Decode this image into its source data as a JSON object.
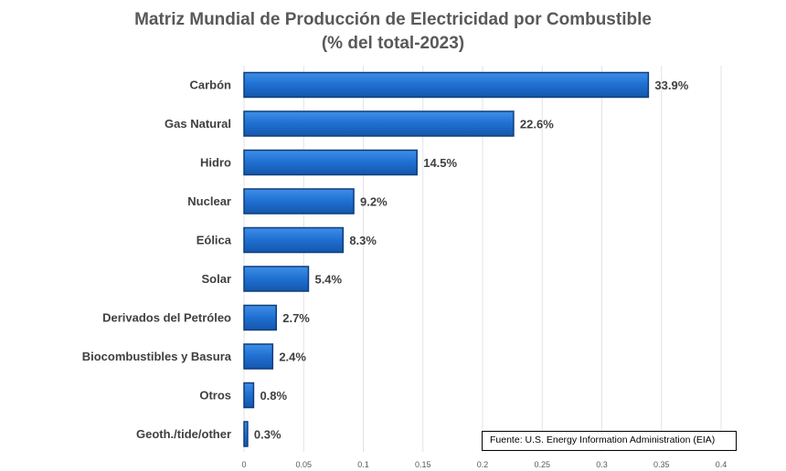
{
  "chart_data": {
    "type": "bar",
    "orientation": "horizontal",
    "title": "Matriz Mundial de Producción de Electricidad por Combustible",
    "subtitle": "(% del total-2023)",
    "categories": [
      "Carbón",
      "Gas Natural",
      "Hidro",
      "Nuclear",
      "Eólica",
      "Solar",
      "Derivados del Petróleo",
      "Biocombustibles y Basura",
      "Otros",
      "Geoth./tide/other"
    ],
    "values": [
      0.339,
      0.226,
      0.145,
      0.092,
      0.083,
      0.054,
      0.027,
      0.024,
      0.008,
      0.003
    ],
    "value_labels": [
      "33.9%",
      "22.6%",
      "14.5%",
      "9.2%",
      "8.3%",
      "5.4%",
      "2.7%",
      "2.4%",
      "0.8%",
      "0.3%"
    ],
    "xlim": [
      0,
      0.4
    ],
    "x_ticks": [
      "0",
      "0.05",
      "0.1",
      "0.15",
      "0.2",
      "0.25",
      "0.3",
      "0.35",
      "0.4"
    ],
    "grid": "vertical",
    "bar_color": "#1f6fd1",
    "bar_edge_color": "#0d3e7c",
    "source_note": "Fuente: U.S. Energy Information Administration (EIA)"
  }
}
